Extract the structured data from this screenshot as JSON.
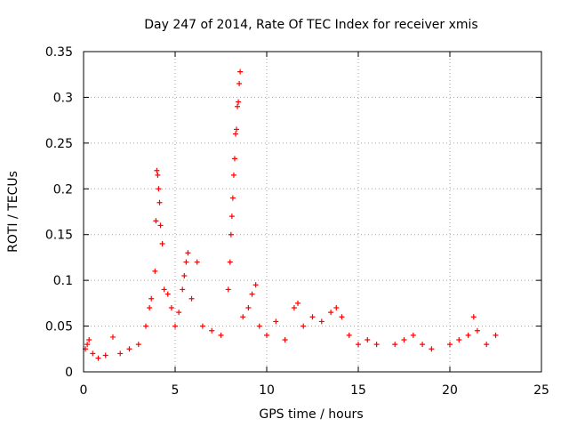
{
  "chart_data": {
    "type": "scatter",
    "title": "Day 247 of 2014, Rate Of TEC Index for receiver xmis",
    "xlabel": "GPS time / hours",
    "ylabel": "ROTI / TECUs",
    "xlim": [
      0,
      25
    ],
    "ylim": [
      0,
      0.35
    ],
    "xticks": [
      0,
      5,
      10,
      15,
      20,
      25
    ],
    "xtick_labels": [
      "0",
      "5",
      "10",
      "15",
      "20",
      "25"
    ],
    "yticks": [
      0,
      0.05,
      0.1,
      0.15,
      0.2,
      0.25,
      0.3,
      0.35
    ],
    "ytick_labels": [
      "0",
      "0.05",
      "0.1",
      "0.15",
      "0.2",
      "0.25",
      "0.3",
      "0.35"
    ],
    "grid": true,
    "marker": "+",
    "marker_color": "#ff0000",
    "series": [
      {
        "name": "ROTI",
        "points": [
          [
            0.1,
            0.025
          ],
          [
            0.2,
            0.03
          ],
          [
            0.3,
            0.035
          ],
          [
            0.5,
            0.02
          ],
          [
            0.8,
            0.015
          ],
          [
            1.2,
            0.018
          ],
          [
            1.6,
            0.038
          ],
          [
            2.0,
            0.02
          ],
          [
            2.5,
            0.025
          ],
          [
            3.0,
            0.03
          ],
          [
            3.4,
            0.05
          ],
          [
            3.6,
            0.07
          ],
          [
            3.7,
            0.08
          ],
          [
            3.9,
            0.11
          ],
          [
            3.95,
            0.165
          ],
          [
            4.0,
            0.22
          ],
          [
            4.05,
            0.215
          ],
          [
            4.1,
            0.2
          ],
          [
            4.15,
            0.185
          ],
          [
            4.2,
            0.16
          ],
          [
            4.3,
            0.14
          ],
          [
            4.4,
            0.09
          ],
          [
            4.6,
            0.085
          ],
          [
            4.8,
            0.07
          ],
          [
            5.0,
            0.05
          ],
          [
            5.2,
            0.065
          ],
          [
            5.4,
            0.09
          ],
          [
            5.5,
            0.105
          ],
          [
            5.6,
            0.12
          ],
          [
            5.7,
            0.13
          ],
          [
            5.9,
            0.08
          ],
          [
            6.2,
            0.12
          ],
          [
            6.5,
            0.05
          ],
          [
            7.0,
            0.045
          ],
          [
            7.5,
            0.04
          ],
          [
            7.9,
            0.09
          ],
          [
            8.0,
            0.12
          ],
          [
            8.05,
            0.15
          ],
          [
            8.1,
            0.17
          ],
          [
            8.15,
            0.19
          ],
          [
            8.2,
            0.215
          ],
          [
            8.25,
            0.233
          ],
          [
            8.3,
            0.26
          ],
          [
            8.35,
            0.265
          ],
          [
            8.4,
            0.29
          ],
          [
            8.45,
            0.295
          ],
          [
            8.5,
            0.315
          ],
          [
            8.55,
            0.328
          ],
          [
            8.7,
            0.06
          ],
          [
            9.0,
            0.07
          ],
          [
            9.2,
            0.085
          ],
          [
            9.4,
            0.095
          ],
          [
            9.6,
            0.05
          ],
          [
            10.0,
            0.04
          ],
          [
            10.5,
            0.055
          ],
          [
            11.0,
            0.035
          ],
          [
            11.5,
            0.07
          ],
          [
            11.7,
            0.075
          ],
          [
            12.0,
            0.05
          ],
          [
            12.5,
            0.06
          ],
          [
            13.0,
            0.055
          ],
          [
            13.5,
            0.065
          ],
          [
            13.8,
            0.07
          ],
          [
            14.1,
            0.06
          ],
          [
            14.5,
            0.04
          ],
          [
            15.0,
            0.03
          ],
          [
            15.5,
            0.035
          ],
          [
            16.0,
            0.03
          ],
          [
            17.0,
            0.03
          ],
          [
            17.5,
            0.035
          ],
          [
            18.0,
            0.04
          ],
          [
            18.5,
            0.03
          ],
          [
            19.0,
            0.025
          ],
          [
            20.0,
            0.03
          ],
          [
            20.5,
            0.035
          ],
          [
            21.0,
            0.04
          ],
          [
            21.3,
            0.06
          ],
          [
            21.5,
            0.045
          ],
          [
            22.0,
            0.03
          ],
          [
            22.5,
            0.04
          ]
        ]
      }
    ]
  }
}
